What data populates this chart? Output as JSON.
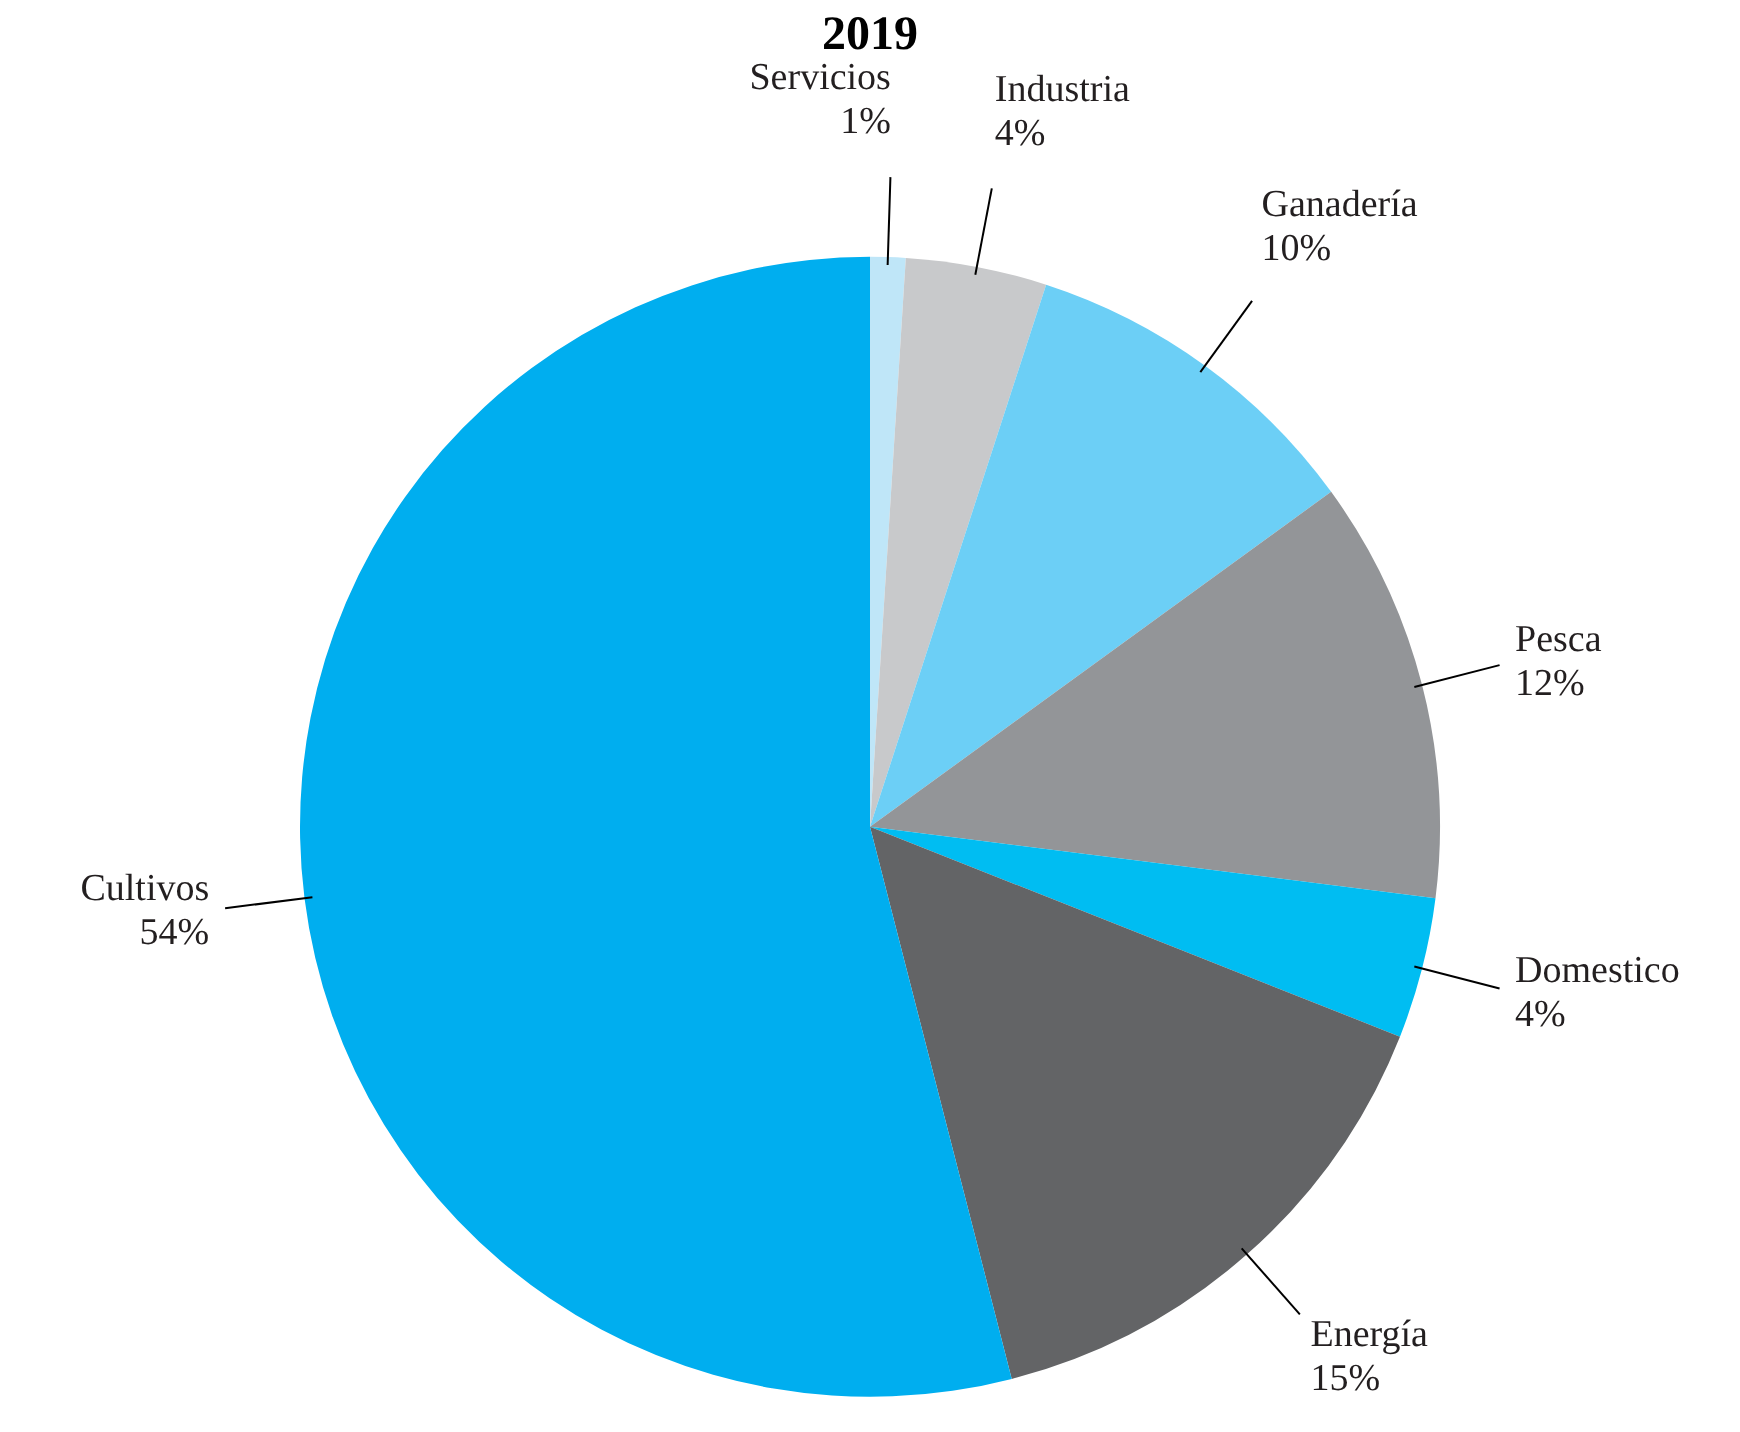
{
  "chart_data": {
    "type": "pie",
    "title": "2019",
    "categories": [
      "Servicios",
      "Industria",
      "Ganadería",
      "Pesca",
      "Domestico",
      "Energía",
      "Cultivos"
    ],
    "values": [
      1,
      4,
      10,
      12,
      4,
      15,
      54
    ],
    "value_labels": [
      "1%",
      "4%",
      "10%",
      "12%",
      "4%",
      "15%",
      "54%"
    ],
    "colors": [
      "#bfe6f8",
      "#c8c9cb",
      "#6ccff6",
      "#939598",
      "#00bdf2",
      "#636466",
      "#00aeef"
    ],
    "legend": false
  }
}
